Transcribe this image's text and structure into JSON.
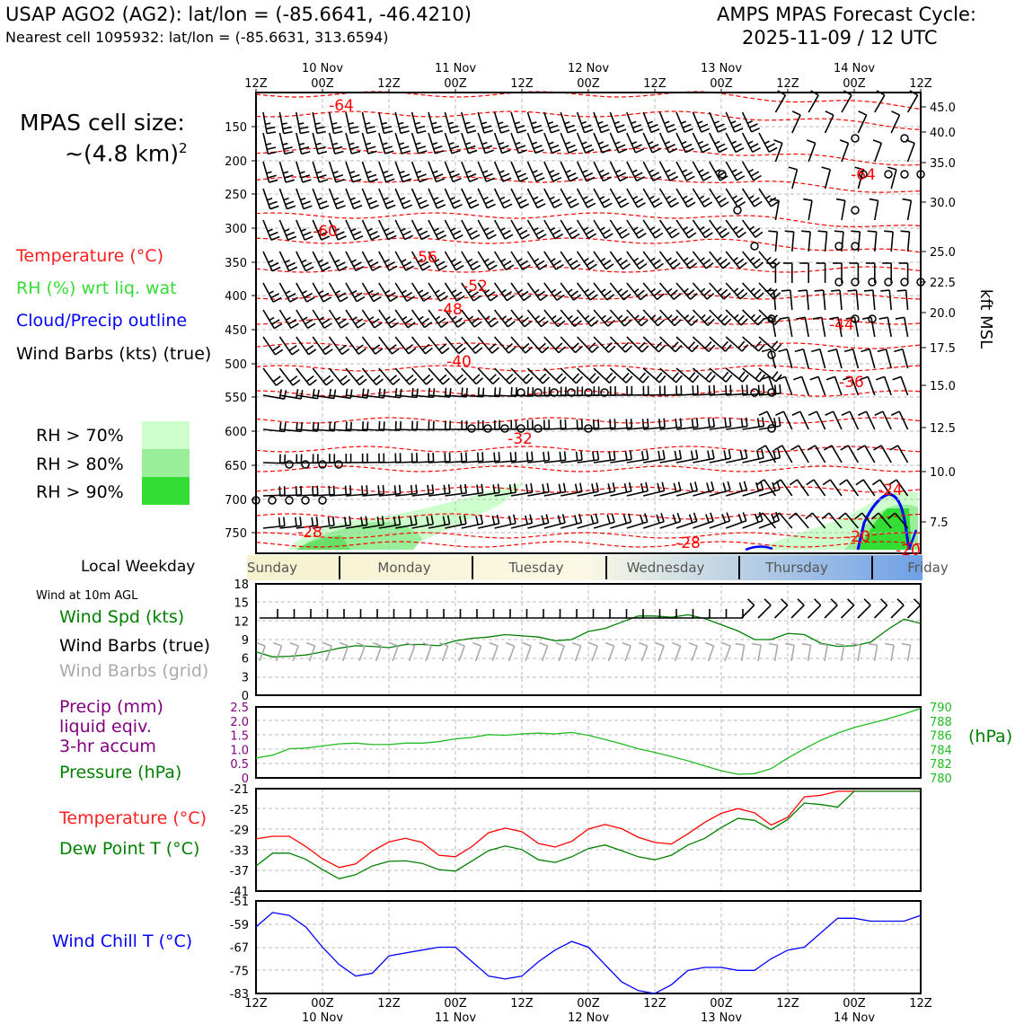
{
  "header": {
    "station": "USAP AGO2 (AG2): lat/lon = (-85.6641, -46.4210)",
    "nearest": "Nearest cell 1095932: lat/lon = (-85.6631, 313.6594)",
    "model": "AMPS MPAS Forecast Cycle:",
    "cycle": "2025-11-09 / 12 UTC"
  },
  "cell": {
    "label": "MPAS cell size:",
    "value": "~(4.8 km)",
    "exp": "2"
  },
  "legend": {
    "temp": "Temperature (°C)",
    "rh": "RH (%) wrt liq. wat",
    "cloud": "Cloud/Precip outline",
    "wind": "Wind Barbs (kts) (true)",
    "rh70": "RH > 70%",
    "rh80": "RH > 80%",
    "rh90": "RH > 90%"
  },
  "weekday_label": "Local Weekday",
  "weekdays": [
    "Sunday",
    "Monday",
    "Tuesday",
    "Wednesday",
    "Thursday",
    "Friday"
  ],
  "panels": {
    "wind_title": "Wind at 10m AGL",
    "wind_spd": "Wind Spd (kts)",
    "wind_barbs_true": "Wind Barbs (true)",
    "wind_barbs_grid": "Wind Barbs (grid)",
    "precip1": "Precip (mm)",
    "precip2": "liquid eqiv.",
    "precip3": "3-hr accum",
    "pressure": "Pressure (hPa)",
    "pressure_unit": "(hPa)",
    "temp": "Temperature (°C)",
    "dewpt": "Dew Point T (°C)",
    "windchill": "Wind Chill T (°C)"
  },
  "axis": {
    "top_ticks": [
      "12Z",
      "00Z",
      "12Z",
      "00Z",
      "12Z",
      "00Z",
      "12Z",
      "00Z",
      "12Z",
      "00Z",
      "12Z"
    ],
    "dates": [
      "10 Nov",
      "11 Nov",
      "12 Nov",
      "13 Nov",
      "14 Nov"
    ],
    "hpa_ticks": [
      "150",
      "200",
      "250",
      "300",
      "350",
      "400",
      "450",
      "500",
      "550",
      "600",
      "650",
      "700",
      "750"
    ],
    "kft_ticks": [
      "45.0",
      "40.0",
      "35.0",
      "30.0",
      "25.0",
      "22.5",
      "20.0",
      "17.5",
      "15.0",
      "12.5",
      "10.0",
      "7.5"
    ],
    "kft_label": "kft MSL",
    "contour_labels": [
      "-64",
      "-60",
      "-56",
      "-52",
      "-48",
      "-40",
      "-32",
      "-28",
      "-28",
      "-64",
      "-44",
      "-36",
      "-24",
      "-20",
      "-20"
    ]
  },
  "colors": {
    "temp": "#ff0000",
    "rh_text": "#22dd22",
    "cloud": "#0000ff",
    "wind_spd": "#008000",
    "precip": "#800080",
    "pressure": "#22bb22",
    "grid_barb": "#aaaaaa",
    "rh70": "#ccffcc",
    "rh80": "#99ee99",
    "rh90": "#33dd33"
  },
  "chart_data": [
    {
      "type": "line",
      "name": "wind_speed",
      "x": [
        "09 12Z",
        "09 15Z",
        "09 18Z",
        "09 21Z",
        "10 00Z",
        "10 03Z",
        "10 06Z",
        "10 09Z",
        "10 12Z",
        "10 15Z",
        "10 18Z",
        "10 21Z",
        "11 00Z",
        "11 03Z",
        "11 06Z",
        "11 09Z",
        "11 12Z",
        "11 15Z",
        "11 18Z",
        "11 21Z",
        "12 00Z",
        "12 03Z",
        "12 06Z",
        "12 09Z",
        "12 12Z",
        "12 15Z",
        "12 18Z",
        "12 21Z",
        "13 00Z",
        "13 03Z",
        "13 06Z",
        "13 09Z",
        "13 12Z",
        "13 15Z",
        "13 18Z",
        "13 21Z",
        "14 00Z",
        "14 03Z",
        "14 06Z",
        "14 09Z",
        "14 12Z"
      ],
      "values": [
        7.0,
        6.2,
        6.3,
        6.5,
        7.0,
        7.6,
        8.0,
        7.9,
        7.7,
        8.2,
        8.2,
        8.0,
        8.8,
        9.2,
        9.4,
        9.8,
        9.6,
        9.4,
        8.8,
        9.0,
        10.3,
        10.8,
        11.8,
        12.8,
        12.8,
        12.6,
        13.0,
        12.4,
        11.4,
        10.4,
        9.0,
        9.0,
        10.0,
        9.8,
        8.4,
        7.9,
        8.0,
        8.6,
        10.6,
        12.3,
        11.6
      ],
      "ylim": [
        0,
        18
      ],
      "yticks": [
        "0",
        "3",
        "6",
        "9",
        "12",
        "15",
        "18"
      ]
    },
    {
      "type": "line",
      "name": "pressure",
      "x": [
        "09 12Z",
        "09 15Z",
        "09 18Z",
        "09 21Z",
        "10 00Z",
        "10 03Z",
        "10 06Z",
        "10 09Z",
        "10 12Z",
        "10 15Z",
        "10 18Z",
        "10 21Z",
        "11 00Z",
        "11 03Z",
        "11 06Z",
        "11 09Z",
        "11 12Z",
        "11 15Z",
        "11 18Z",
        "11 21Z",
        "12 00Z",
        "12 03Z",
        "12 06Z",
        "12 09Z",
        "12 12Z",
        "12 15Z",
        "12 18Z",
        "12 21Z",
        "13 00Z",
        "13 03Z",
        "13 06Z",
        "13 09Z",
        "13 12Z",
        "13 15Z",
        "13 18Z",
        "13 21Z",
        "14 00Z",
        "14 03Z",
        "14 06Z",
        "14 09Z",
        "14 12Z"
      ],
      "values": [
        782.8,
        783.2,
        784.1,
        784.2,
        784.5,
        784.8,
        784.9,
        784.7,
        784.7,
        784.9,
        784.9,
        785.1,
        785.5,
        785.7,
        786.1,
        786.0,
        786.2,
        786.3,
        786.2,
        786.4,
        786.0,
        785.4,
        784.8,
        784.1,
        783.6,
        783.0,
        782.4,
        781.7,
        781.0,
        780.5,
        780.6,
        781.3,
        782.8,
        784.1,
        785.3,
        786.3,
        787.1,
        787.7,
        788.3,
        789.0,
        789.8
      ],
      "ylim": [
        780,
        790
      ],
      "yticks_right": [
        "780",
        "782",
        "784",
        "786",
        "788",
        "790"
      ],
      "yticks_left_precip": [
        "0",
        "0.5",
        "1.0",
        "1.5",
        "2.0",
        "2.5"
      ]
    },
    {
      "type": "line",
      "name": "temperature",
      "x": [
        "09 12Z",
        "09 15Z",
        "09 18Z",
        "09 21Z",
        "10 00Z",
        "10 03Z",
        "10 06Z",
        "10 09Z",
        "10 12Z",
        "10 15Z",
        "10 18Z",
        "10 21Z",
        "11 00Z",
        "11 03Z",
        "11 06Z",
        "11 09Z",
        "11 12Z",
        "11 15Z",
        "11 18Z",
        "11 21Z",
        "12 00Z",
        "12 03Z",
        "12 06Z",
        "12 09Z",
        "12 12Z",
        "12 15Z",
        "12 18Z",
        "12 21Z",
        "13 00Z",
        "13 03Z",
        "13 06Z",
        "13 09Z",
        "13 12Z",
        "13 15Z",
        "13 18Z",
        "13 21Z",
        "14 00Z",
        "14 03Z",
        "14 06Z",
        "14 09Z",
        "14 12Z"
      ],
      "series": [
        {
          "name": "Temperature",
          "values": [
            -30.8,
            -30.3,
            -30.3,
            -32.3,
            -34.7,
            -36.4,
            -35.7,
            -33.2,
            -31.4,
            -30.7,
            -31.5,
            -34.0,
            -34.3,
            -32.3,
            -29.6,
            -28.7,
            -29.4,
            -31.7,
            -32.4,
            -31.3,
            -28.9,
            -28.0,
            -28.8,
            -30.5,
            -31.5,
            -31.8,
            -29.8,
            -27.6,
            -25.8,
            -24.9,
            -25.7,
            -28.1,
            -26.6,
            -22.6,
            -22.3,
            -21.5,
            -21.5,
            -21.5,
            -21.5,
            -21.5,
            -21.5
          ]
        },
        {
          "name": "Dew Point T",
          "values": [
            -36.1,
            -33.6,
            -33.6,
            -34.8,
            -36.8,
            -38.6,
            -37.8,
            -36.1,
            -35.2,
            -35.1,
            -35.6,
            -36.8,
            -37.1,
            -35.1,
            -33.1,
            -32.2,
            -32.9,
            -34.9,
            -35.4,
            -34.3,
            -32.7,
            -32.0,
            -33.1,
            -34.3,
            -34.9,
            -34.0,
            -32.0,
            -30.7,
            -28.6,
            -26.8,
            -27.2,
            -29.0,
            -27.0,
            -23.8,
            -24.1,
            -24.6,
            -21.5,
            -21.5,
            -21.5,
            -21.5,
            -21.5
          ]
        }
      ],
      "ylim": [
        -41,
        -21
      ],
      "yticks": [
        "-41",
        "-37",
        "-33",
        "-29",
        "-25",
        "-21"
      ]
    },
    {
      "type": "line",
      "name": "wind_chill",
      "x": [
        "09 12Z",
        "09 15Z",
        "09 18Z",
        "09 21Z",
        "10 00Z",
        "10 03Z",
        "10 06Z",
        "10 09Z",
        "10 12Z",
        "10 15Z",
        "10 18Z",
        "10 21Z",
        "11 00Z",
        "11 03Z",
        "11 06Z",
        "11 09Z",
        "11 12Z",
        "11 15Z",
        "11 18Z",
        "11 21Z",
        "12 00Z",
        "12 03Z",
        "12 06Z",
        "12 09Z",
        "12 12Z",
        "12 15Z",
        "12 18Z",
        "12 21Z",
        "13 00Z",
        "13 03Z",
        "13 06Z",
        "13 09Z",
        "13 12Z",
        "13 15Z",
        "13 18Z",
        "13 21Z",
        "14 00Z",
        "14 03Z",
        "14 06Z",
        "14 09Z",
        "14 12Z"
      ],
      "values": [
        -60,
        -55,
        -56,
        -60,
        -67,
        -73,
        -77,
        -76,
        -70,
        -69,
        -68,
        -67,
        -67,
        -72,
        -77,
        -78,
        -77,
        -72,
        -68,
        -65,
        -67,
        -73,
        -79,
        -82,
        -83,
        -80,
        -75,
        -74,
        -74,
        -75,
        -75,
        -71,
        -68,
        -67,
        -62,
        -57,
        -57,
        -58,
        -58,
        -58,
        -56
      ],
      "ylim": [
        -83,
        -51
      ],
      "yticks": [
        "-83",
        "-75",
        "-67",
        "-59",
        "-51"
      ]
    }
  ]
}
